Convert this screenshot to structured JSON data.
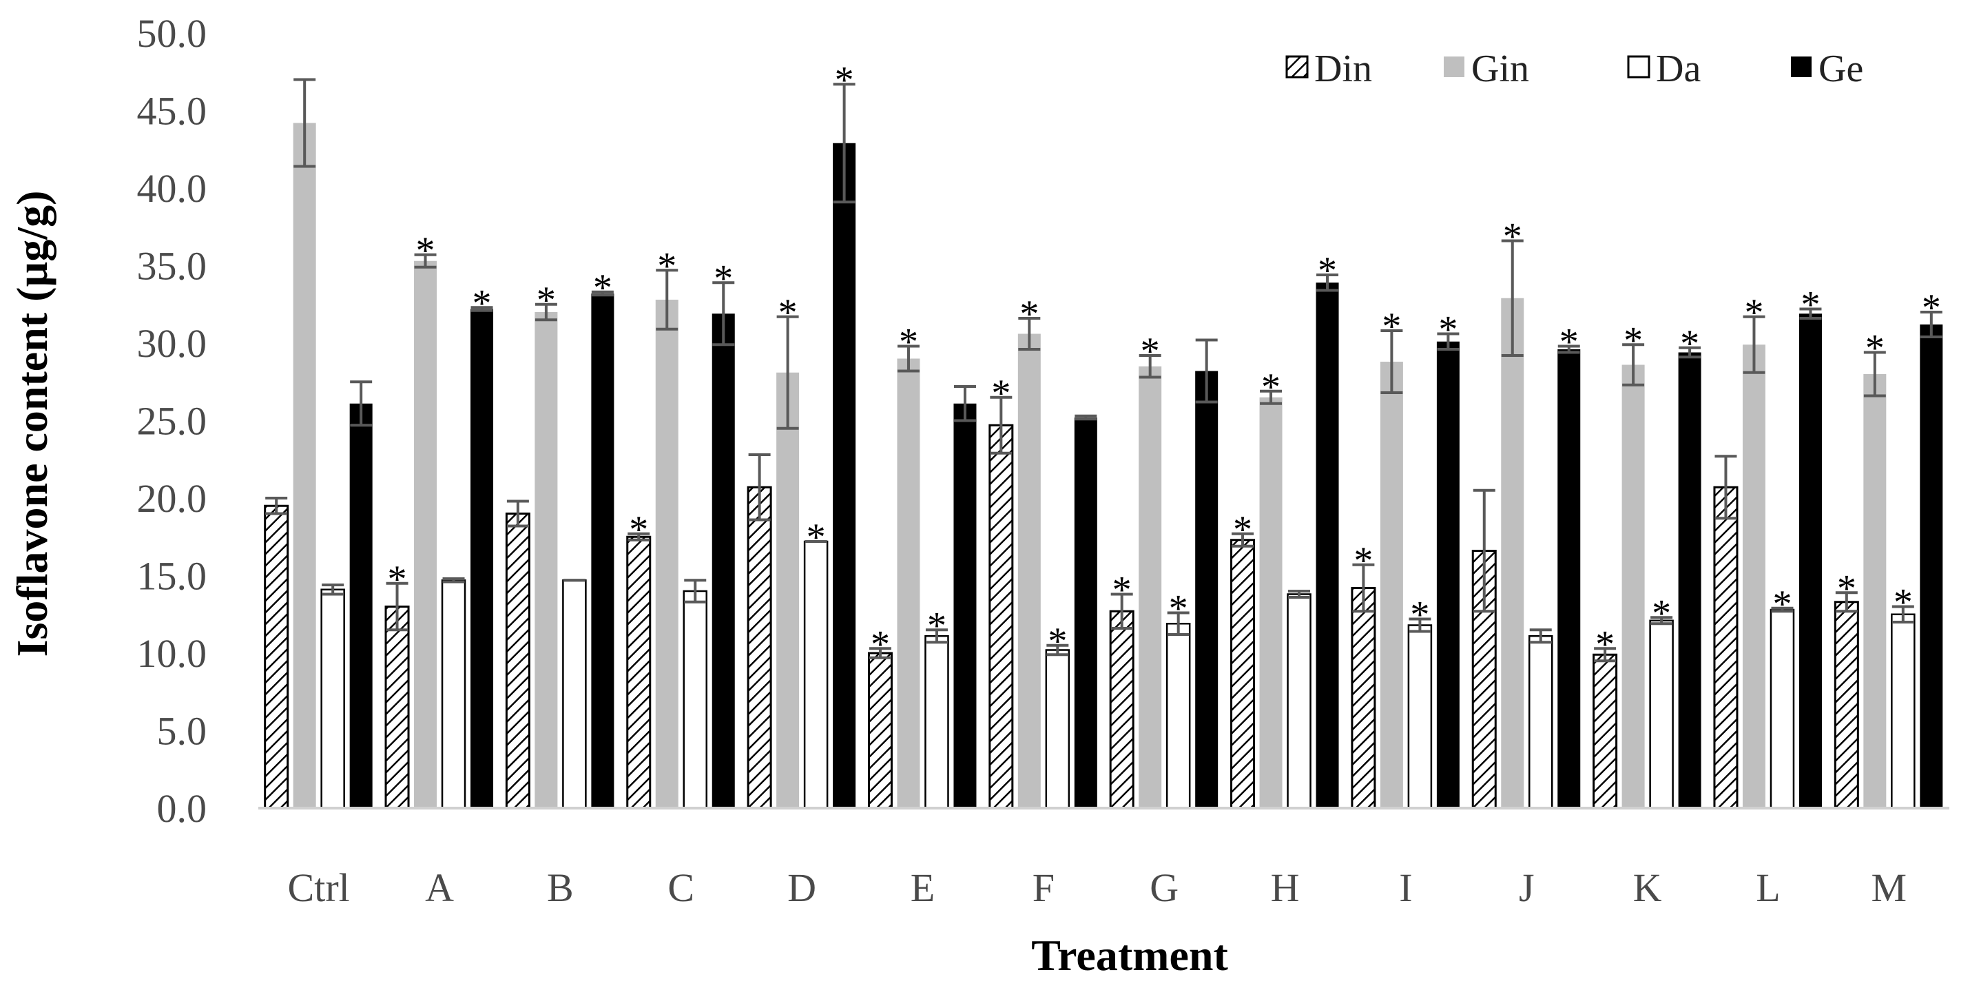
{
  "chart_data": {
    "type": "bar",
    "title": "",
    "xlabel": "Treatment",
    "ylabel": "Isoflavone content (µg/g)",
    "ylim": [
      0,
      50
    ],
    "yticks": [
      "0.0",
      "5.0",
      "10.0",
      "15.0",
      "20.0",
      "25.0",
      "30.0",
      "35.0",
      "40.0",
      "45.0",
      "50.0"
    ],
    "grid": false,
    "legend_position": "top-right",
    "significance_marker": "*",
    "categories": [
      "Ctrl",
      "A",
      "B",
      "C",
      "D",
      "E",
      "F",
      "G",
      "H",
      "I",
      "J",
      "K",
      "L",
      "M"
    ],
    "series": [
      {
        "name": "Din",
        "style": "hatched",
        "values": [
          19.5,
          13.0,
          19.0,
          17.5,
          20.7,
          10.0,
          24.7,
          12.7,
          17.3,
          14.2,
          16.6,
          9.9,
          20.7,
          13.3
        ],
        "errors": [
          0.5,
          1.5,
          0.8,
          0.2,
          2.1,
          0.3,
          1.8,
          1.1,
          0.4,
          1.5,
          3.9,
          0.4,
          2.0,
          0.6
        ],
        "significant": [
          false,
          true,
          false,
          true,
          false,
          true,
          true,
          true,
          true,
          true,
          false,
          true,
          false,
          true
        ]
      },
      {
        "name": "Gin",
        "style": "light-gray",
        "values": [
          44.2,
          35.3,
          32.0,
          32.8,
          28.1,
          29.0,
          30.6,
          28.5,
          26.5,
          28.8,
          32.9,
          28.6,
          29.9,
          28.0
        ],
        "errors": [
          2.8,
          0.4,
          0.5,
          1.9,
          3.6,
          0.8,
          1.0,
          0.7,
          0.4,
          2.0,
          3.7,
          1.3,
          1.8,
          1.4
        ],
        "significant": [
          false,
          true,
          true,
          true,
          true,
          true,
          true,
          true,
          true,
          true,
          true,
          true,
          true,
          true
        ]
      },
      {
        "name": "Da",
        "style": "white",
        "values": [
          14.1,
          14.7,
          14.7,
          14.0,
          17.2,
          11.1,
          10.2,
          11.9,
          13.8,
          11.8,
          11.1,
          12.1,
          12.8,
          12.5
        ],
        "errors": [
          0.3,
          0.1,
          0.0,
          0.7,
          0.0,
          0.4,
          0.3,
          0.7,
          0.2,
          0.4,
          0.4,
          0.2,
          0.1,
          0.5
        ],
        "significant": [
          false,
          false,
          false,
          false,
          true,
          true,
          true,
          true,
          false,
          true,
          false,
          true,
          true,
          true
        ]
      },
      {
        "name": "Ge",
        "style": "black",
        "values": [
          26.1,
          32.2,
          33.2,
          31.9,
          42.9,
          26.1,
          25.2,
          28.2,
          33.9,
          30.1,
          29.6,
          29.4,
          31.9,
          31.2
        ],
        "errors": [
          1.4,
          0.1,
          0.1,
          2.0,
          3.8,
          1.1,
          0.1,
          2.0,
          0.5,
          0.5,
          0.2,
          0.3,
          0.3,
          0.8
        ],
        "significant": [
          false,
          true,
          true,
          true,
          true,
          false,
          false,
          false,
          true,
          true,
          true,
          true,
          true,
          true
        ]
      }
    ]
  }
}
